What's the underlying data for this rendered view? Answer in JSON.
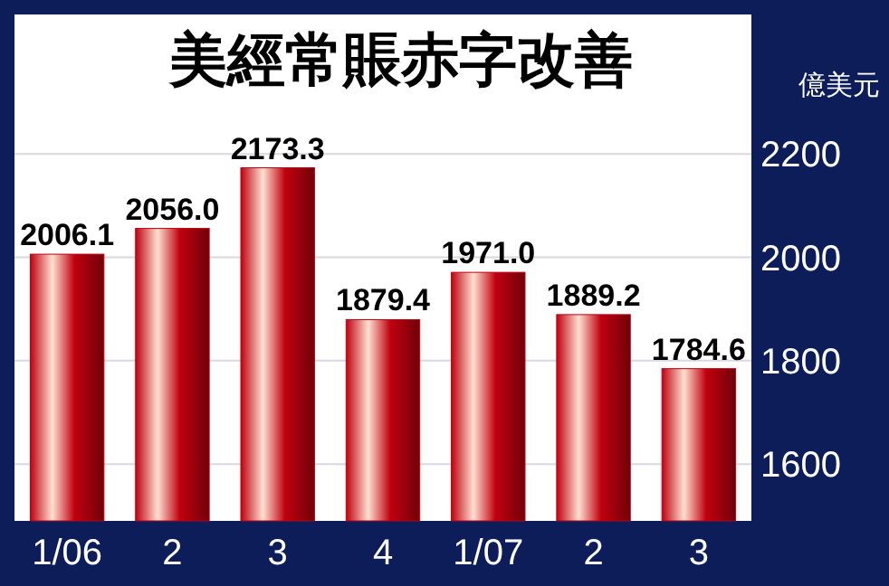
{
  "chart_data": {
    "type": "bar",
    "title": "美經常賬赤字改善",
    "ylabel": "億美元",
    "categories": [
      "1/06",
      "2",
      "3",
      "4",
      "1/07",
      "2",
      "3"
    ],
    "values": [
      2006.1,
      2056.0,
      2173.3,
      1879.4,
      1971.0,
      1889.2,
      1784.6
    ],
    "color": "#c00010",
    "value_labels": [
      "2006.1",
      "2056.0",
      "2173.3",
      "1879.4",
      "1971.0",
      "1889.2",
      "1784.6"
    ],
    "ylim": [
      1490,
      2470
    ],
    "yticks": [
      1600,
      1800,
      2000,
      2200
    ],
    "grid": "y"
  }
}
